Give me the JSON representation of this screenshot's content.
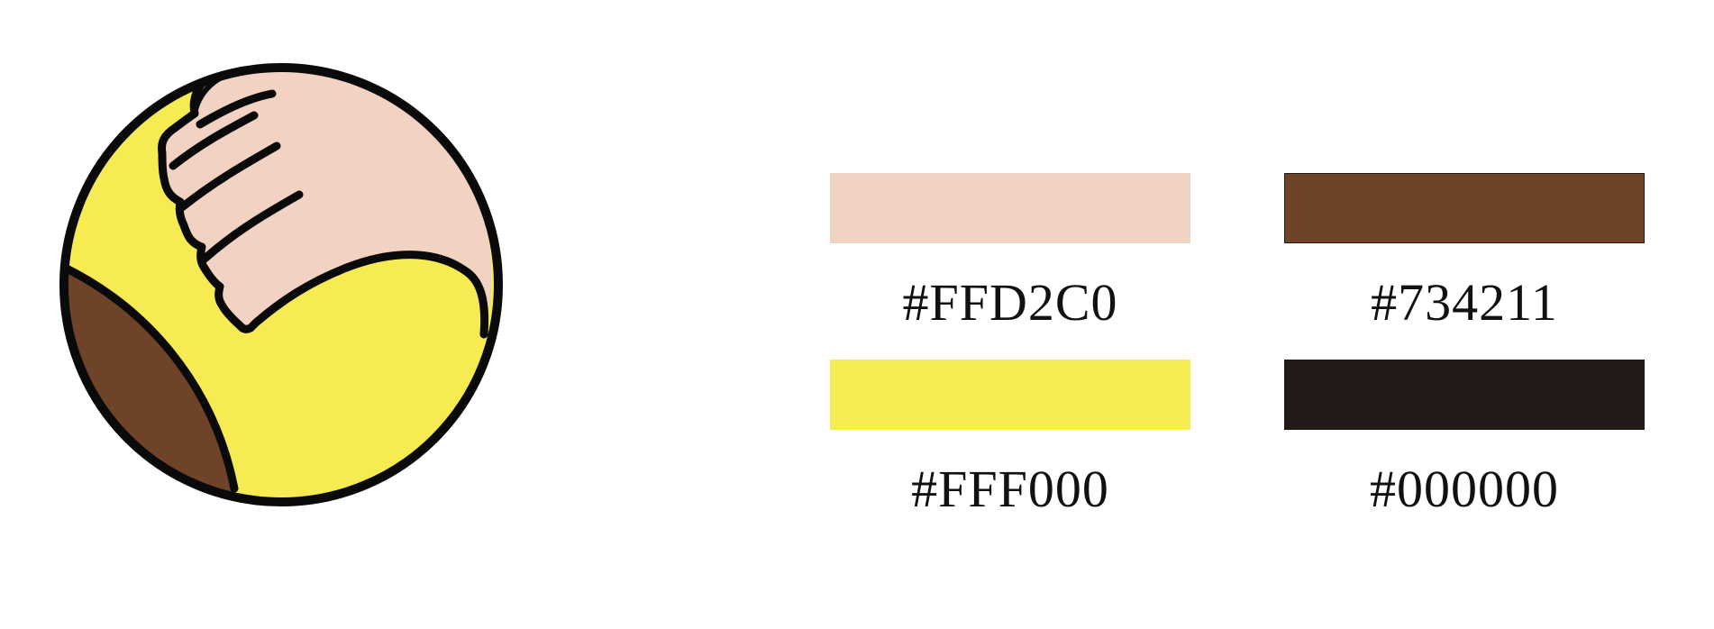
{
  "logo": {
    "icon": "hand-over-ball-icon",
    "colors": {
      "ball": "#F7EB53",
      "hand": "#F2D2C3",
      "segment": "#6E4328",
      "outline": "#0A0A0A"
    }
  },
  "palette": {
    "swatches": [
      {
        "label": "#FFD2C0",
        "color": "#F2D2C3"
      },
      {
        "label": "#734211",
        "color": "#6E4328"
      },
      {
        "label": "#FFF000",
        "color": "#F7EB53"
      },
      {
        "label": "#000000",
        "color": "#231A18"
      }
    ]
  }
}
